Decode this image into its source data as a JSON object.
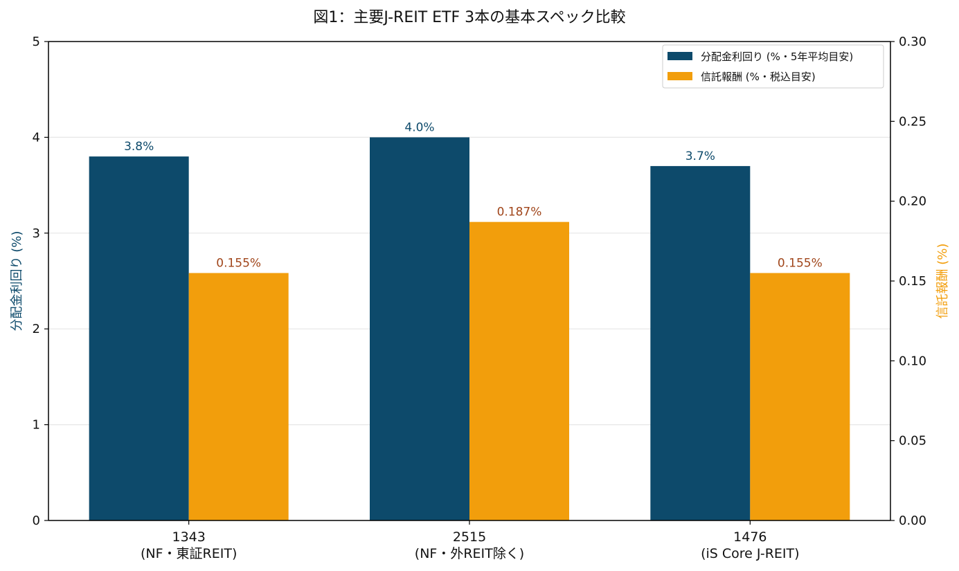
{
  "chart_data": {
    "type": "bar",
    "title": "図1：主要J-REIT ETF 3本の基本スペック比較",
    "categories": [
      {
        "code": "1343",
        "name": "(NF・東証REIT)"
      },
      {
        "code": "2515",
        "name": "(NF・外REIT除く)"
      },
      {
        "code": "1476",
        "name": "(iS Core J-REIT)"
      }
    ],
    "series": [
      {
        "name": "分配金利回り (%・5年平均目安)",
        "axis": "left",
        "values": [
          3.8,
          4.0,
          3.7
        ],
        "labels": [
          "3.8%",
          "4.0%",
          "3.7%"
        ],
        "color": "#0d4a6b",
        "label_color": "#0d4a6b"
      },
      {
        "name": "信託報酬 (%・税込目安)",
        "axis": "right",
        "values": [
          0.155,
          0.187,
          0.155
        ],
        "labels": [
          "0.155%",
          "0.187%",
          "0.155%"
        ],
        "color": "#f29e0c",
        "label_color": "#a0451a"
      }
    ],
    "y_left": {
      "label": "分配金利回り (%)",
      "ylim": [
        0,
        5
      ],
      "ticks": [
        "0",
        "1",
        "2",
        "3",
        "4",
        "5"
      ],
      "color": "#0d4a6b"
    },
    "y_right": {
      "label": "信託報酬 (%)",
      "ylim": [
        0,
        0.3
      ],
      "ticks": [
        "0.00",
        "0.05",
        "0.10",
        "0.15",
        "0.20",
        "0.25",
        "0.30"
      ],
      "color": "#f29e0c"
    },
    "grid": true,
    "legend_position": "top-right"
  }
}
